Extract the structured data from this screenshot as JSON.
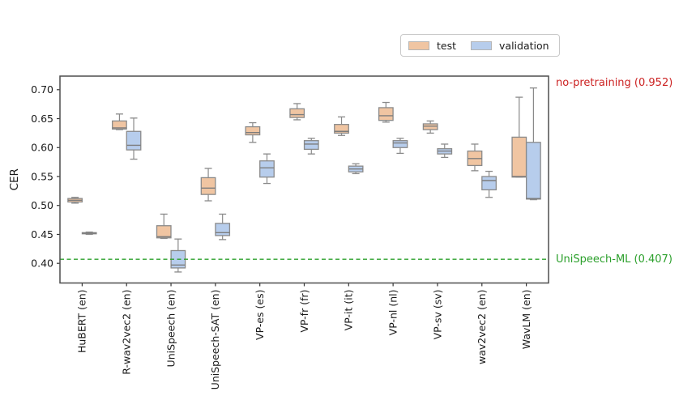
{
  "legend": {
    "items": [
      {
        "label": "test",
        "color": "#f0c5a2"
      },
      {
        "label": "validation",
        "color": "#b7cdec"
      }
    ]
  },
  "chart_data": {
    "type": "boxplot",
    "title": "",
    "xlabel": "",
    "ylabel": "CER",
    "ylim": [
      0.366,
      0.7235
    ],
    "yticks": [
      0.4,
      0.45,
      0.5,
      0.55,
      0.6,
      0.65,
      0.7
    ],
    "grid": false,
    "legend_position": "top-right-outside",
    "categories": [
      "HuBERT (en)",
      "R-wav2vec2 (en)",
      "UniSpeech (en)",
      "UniSpeech-SAT (en)",
      "VP-es (es)",
      "VP-fr (fr)",
      "VP-it (it)",
      "VP-nl (nl)",
      "VP-sv (sv)",
      "wav2vec2 (en)",
      "WavLM (en)"
    ],
    "box_stats_order": [
      "whisker_low",
      "q1",
      "median",
      "q3",
      "whisker_high"
    ],
    "series": [
      {
        "name": "test",
        "color": "#f0c5a2",
        "edge_color": "#8a8a8a",
        "boxes": [
          [
            0.504,
            0.506,
            0.509,
            0.512,
            0.514
          ],
          [
            0.631,
            0.632,
            0.634,
            0.646,
            0.658
          ],
          [
            0.443,
            0.444,
            0.446,
            0.465,
            0.485
          ],
          [
            0.508,
            0.519,
            0.53,
            0.548,
            0.564
          ],
          [
            0.609,
            0.622,
            0.626,
            0.636,
            0.643
          ],
          [
            0.648,
            0.652,
            0.657,
            0.667,
            0.676
          ],
          [
            0.621,
            0.625,
            0.628,
            0.64,
            0.653
          ],
          [
            0.644,
            0.647,
            0.655,
            0.669,
            0.678
          ],
          [
            0.625,
            0.631,
            0.637,
            0.641,
            0.646
          ],
          [
            0.56,
            0.569,
            0.581,
            0.594,
            0.606
          ],
          [
            0.549,
            0.549,
            0.55,
            0.618,
            0.687
          ]
        ]
      },
      {
        "name": "validation",
        "color": "#b7cdec",
        "edge_color": "#8a8a8a",
        "boxes": [
          [
            0.45,
            0.451,
            0.452,
            0.453,
            0.454
          ],
          [
            0.58,
            0.596,
            0.604,
            0.628,
            0.651
          ],
          [
            0.385,
            0.392,
            0.397,
            0.422,
            0.442
          ],
          [
            0.441,
            0.448,
            0.453,
            0.469,
            0.485
          ],
          [
            0.538,
            0.549,
            0.565,
            0.577,
            0.589
          ],
          [
            0.589,
            0.597,
            0.606,
            0.612,
            0.616
          ],
          [
            0.555,
            0.558,
            0.563,
            0.568,
            0.572
          ],
          [
            0.59,
            0.6,
            0.608,
            0.612,
            0.616
          ],
          [
            0.583,
            0.589,
            0.594,
            0.598,
            0.606
          ],
          [
            0.514,
            0.527,
            0.543,
            0.55,
            0.559
          ],
          [
            0.51,
            0.511,
            0.512,
            0.609,
            0.703
          ]
        ]
      }
    ],
    "annotations": [
      {
        "label": "no-pretraining (0.952)",
        "value": 0.952,
        "color": "#cc2222",
        "line": false
      },
      {
        "label": "UniSpeech-ML (0.407)",
        "value": 0.407,
        "color": "#2ca02c",
        "line": true,
        "line_style": "dashed"
      }
    ]
  }
}
